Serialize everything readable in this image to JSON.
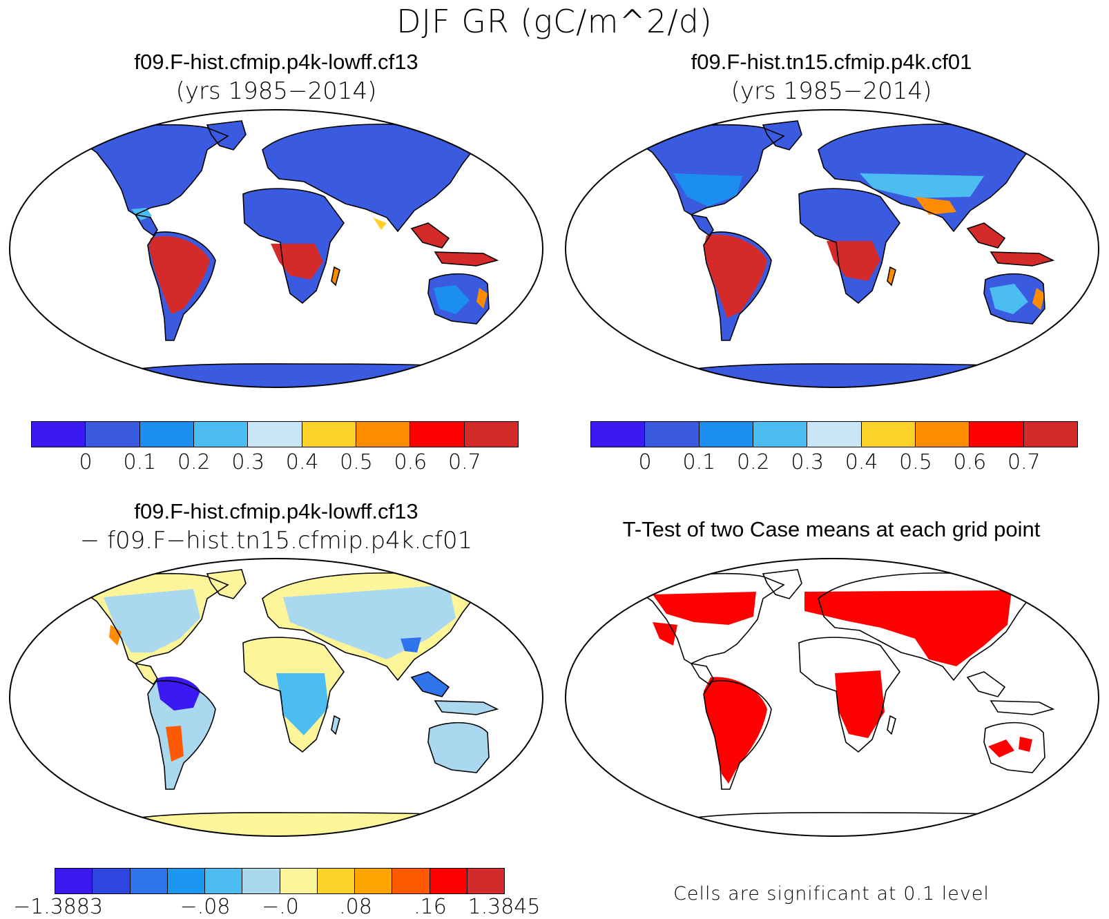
{
  "figure": {
    "title": "DJF GR (gC/m^2/d)"
  },
  "panels": [
    {
      "id": "case1",
      "title": "f09.F-hist.cfmip.p4k-lowff.cf13",
      "subtitle": "(yrs 1985−2014)",
      "colorbar": {
        "colors": [
          "#3b19f2",
          "#3a5be0",
          "#1c8ef0",
          "#4cbdf0",
          "#c8e6f5",
          "#fcd12a",
          "#ff8c00",
          "#ff0000",
          "#d42a2a"
        ],
        "tick_labels": [
          "0",
          "0.1",
          "0.2",
          "0.3",
          "0.4",
          "0.5",
          "0.6",
          "0.7"
        ]
      }
    },
    {
      "id": "case2",
      "title": "f09.F-hist.tn15.cfmip.p4k.cf01",
      "subtitle": "(yrs 1985−2014)",
      "colorbar": {
        "colors": [
          "#3b19f2",
          "#3a5be0",
          "#1c8ef0",
          "#4cbdf0",
          "#c8e6f5",
          "#fcd12a",
          "#ff8c00",
          "#ff0000",
          "#d42a2a"
        ],
        "tick_labels": [
          "0",
          "0.1",
          "0.2",
          "0.3",
          "0.4",
          "0.5",
          "0.6",
          "0.7"
        ]
      }
    },
    {
      "id": "diff",
      "title": "f09.F-hist.cfmip.p4k-lowff.cf13",
      "subtitle": "− f09.F−hist.tn15.cfmip.p4k.cf01",
      "colorbar": {
        "colors": [
          "#3b19f2",
          "#2e45e0",
          "#2f74ea",
          "#1c97f0",
          "#4cbdf0",
          "#a9d8ef",
          "#fdf59a",
          "#fcd12a",
          "#ffa500",
          "#ff5a00",
          "#ff0000",
          "#d42a2a"
        ],
        "tick_labels": [
          "−1.3883",
          "−.08",
          "−.0",
          ".08",
          ".16",
          "1.3845"
        ]
      }
    },
    {
      "id": "ttest",
      "title": "T-Test of two Case means at each grid point",
      "note": "Cells are significant at 0.1 level"
    }
  ],
  "map_colors": {
    "ocean": "#ffffff",
    "coastline": "#000000",
    "significant": "#ff0000"
  }
}
